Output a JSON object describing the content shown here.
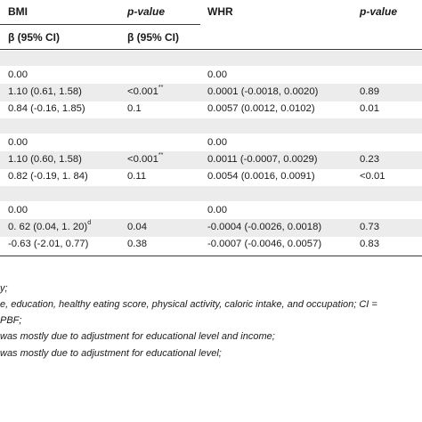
{
  "header": {
    "bmi_label": "BMI",
    "pvalue_label_1": "p-value",
    "whr_label": "WHR",
    "pvalue_label_2": "p-value",
    "beta_label_1": "β (95% CI)",
    "beta_label_2": "β (95% CI)"
  },
  "groups": [
    {
      "rows": [
        {
          "bmi": "0.00",
          "p1": "",
          "p1_sup": "",
          "whr": "0.00",
          "p2": ""
        },
        {
          "bmi": "1.10 (0.61, 1.58)",
          "p1": "<0.001",
          "p1_sup": "**",
          "whr": "0.0001 (-0.0018, 0.0020)",
          "p2": "0.89"
        },
        {
          "bmi": "0.84 (-0.16, 1.85)",
          "p1": "0.1",
          "p1_sup": "",
          "whr": "0.0057 (0.0012, 0.0102)",
          "p2": "0.01"
        }
      ]
    },
    {
      "rows": [
        {
          "bmi": "0.00",
          "p1": "",
          "p1_sup": "",
          "whr": "0.00",
          "p2": ""
        },
        {
          "bmi": "1.10 (0.60, 1.58)",
          "p1": "<0.001",
          "p1_sup": "**",
          "whr": "0.0011 (-0.0007, 0.0029)",
          "p2": "0.23"
        },
        {
          "bmi": "0.82 (-0.19, 1. 84)",
          "p1": "0.11",
          "p1_sup": "",
          "whr": "0.0054 (0.0016, 0.0091)",
          "p2": "<0.01"
        }
      ]
    },
    {
      "rows": [
        {
          "bmi": "0.00",
          "p1": "",
          "p1_sup": "",
          "whr": "0.00",
          "p2": ""
        },
        {
          "bmi": "0. 62 (0.04, 1. 20)",
          "bmi_sup": "d",
          "p1": "0.04",
          "p1_sup": "",
          "whr": "-0.0004 (-0.0026, 0.0018)",
          "p2": "0.73"
        },
        {
          "bmi": "-0.63 (-2.01, 0.77)",
          "p1": "0.38",
          "p1_sup": "",
          "whr": "-0.0007 (-0.0046, 0.0057)",
          "p2": "0.83"
        }
      ]
    }
  ],
  "footnotes": [
    "y;",
    "e, education, healthy eating score, physical activity, caloric intake, and occupation; CI =",
    "PBF;",
    "was mostly due to adjustment for educational level and income;",
    "was mostly due to adjustment for educational level;"
  ]
}
